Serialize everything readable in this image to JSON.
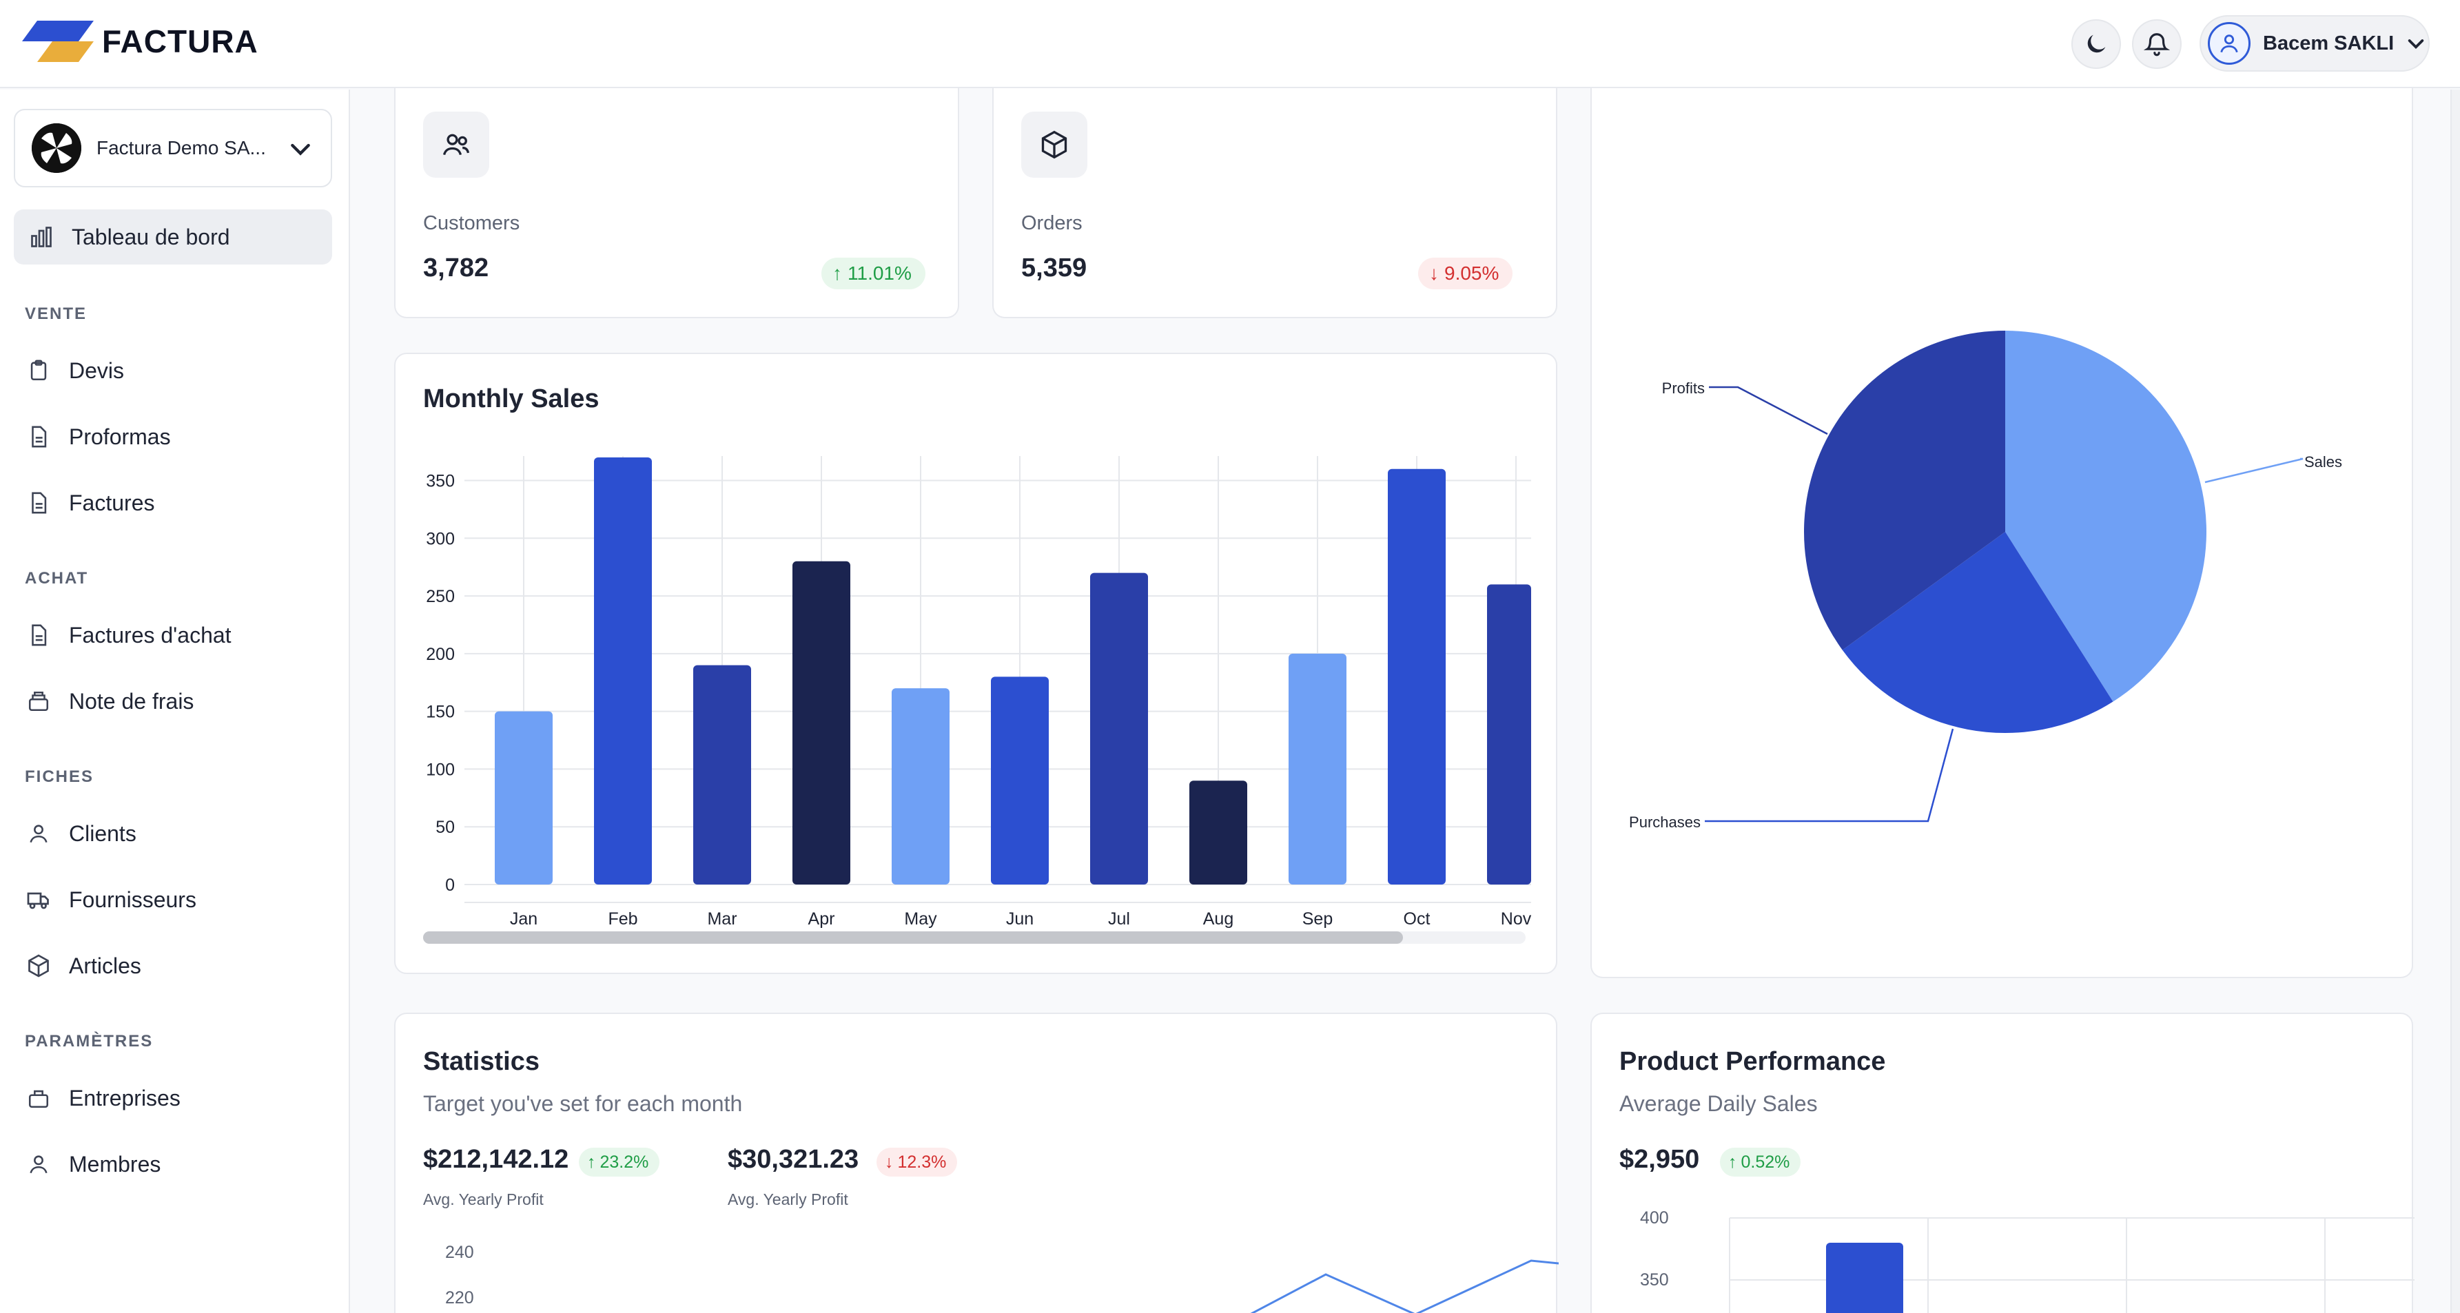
{
  "app": {
    "brand": "FACTURA",
    "user_name": "Bacem SAKLI",
    "company_name": "Factura Demo SA..."
  },
  "sidebar": {
    "active": {
      "label": "Tableau de bord"
    },
    "sections": {
      "vente": "VENTE",
      "achat": "ACHAT",
      "fiches": "FICHES",
      "parametres": "PARAMÈTRES"
    },
    "items": {
      "devis": "Devis",
      "proformas": "Proformas",
      "factures": "Factures",
      "factures_achat": "Factures d'achat",
      "note_frais": "Note de frais",
      "clients": "Clients",
      "fournisseurs": "Fournisseurs",
      "articles": "Articles",
      "entreprises": "Entreprises",
      "membres": "Membres"
    }
  },
  "stats": {
    "customers": {
      "label": "Customers",
      "value": "3,782",
      "change": "11.01%"
    },
    "orders": {
      "label": "Orders",
      "value": "5,359",
      "change": "9.05%"
    }
  },
  "statistics": {
    "title": "Statistics",
    "subtitle": "Target you've set for each month",
    "first": {
      "value": "$212,142.12",
      "change": "23.2%",
      "caption": "Avg. Yearly Profit"
    },
    "second": {
      "value": "$30,321.23",
      "change": "12.3%",
      "caption": "Avg. Yearly Profit"
    },
    "y_ticks": [
      "240",
      "220"
    ]
  },
  "performance": {
    "title": "Product Performance",
    "subtitle": "Average Daily Sales",
    "value": "$2,950",
    "change": "0.52%",
    "y_ticks": [
      "400",
      "350"
    ]
  },
  "colors": {
    "light": "#6fa0f5",
    "blue": "#2c4fd0",
    "mid": "#2a3fa8",
    "navy": "#1b2450"
  },
  "chart_data": [
    {
      "type": "bar",
      "title": "Monthly Sales",
      "categories": [
        "Jan",
        "Feb",
        "Mar",
        "Apr",
        "May",
        "Jun",
        "Jul",
        "Aug",
        "Sep",
        "Oct",
        "Nov"
      ],
      "values": [
        150,
        370,
        190,
        280,
        170,
        180,
        270,
        90,
        200,
        360,
        260
      ],
      "ylim": [
        0,
        370
      ],
      "yticks": [
        0,
        50,
        100,
        150,
        200,
        250,
        300,
        350
      ],
      "xlabel": "",
      "ylabel": "",
      "grid": true
    },
    {
      "type": "pie",
      "title": "",
      "labels": [
        "Sales",
        "Purchases",
        "Profits"
      ],
      "values": [
        41,
        24,
        35
      ]
    }
  ]
}
